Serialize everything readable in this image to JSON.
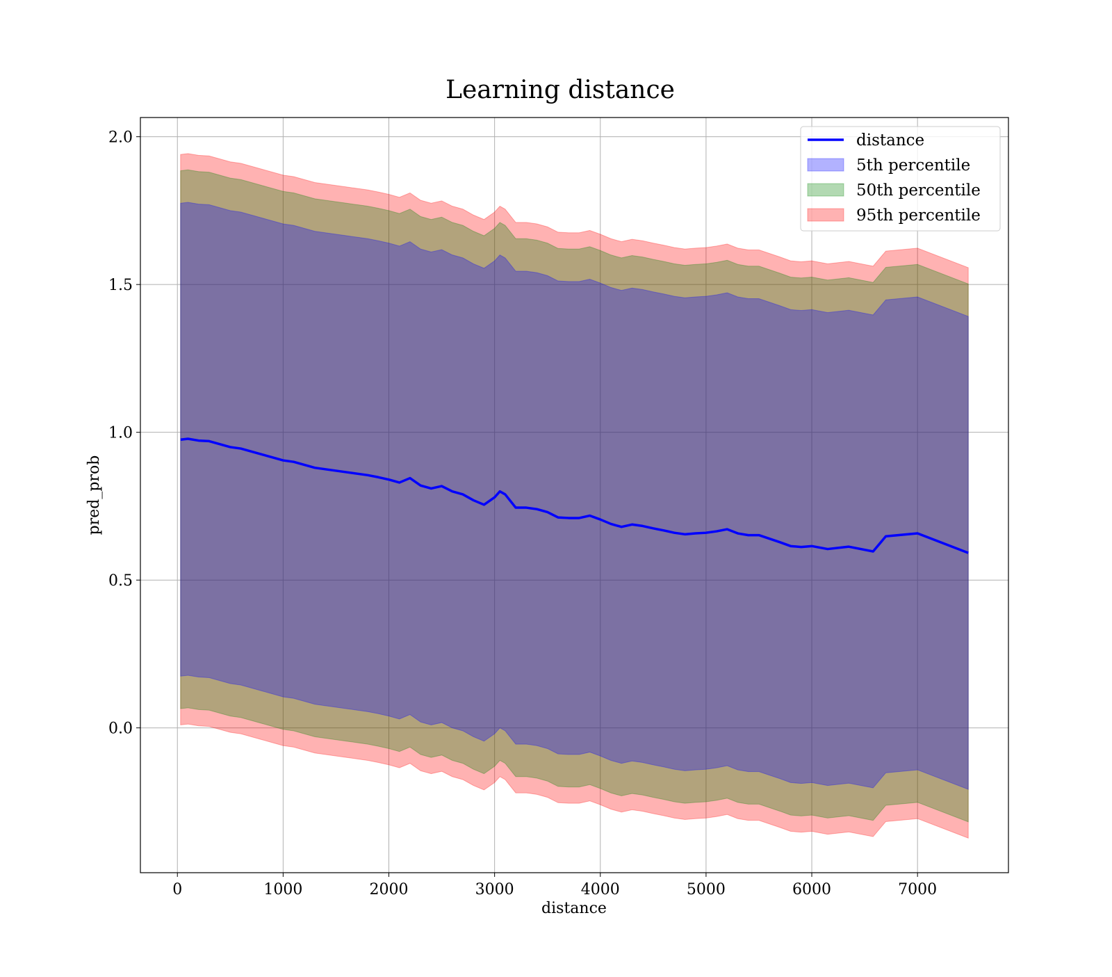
{
  "chart_data": {
    "type": "area",
    "title": "Learning distance",
    "xlabel": "distance",
    "ylabel": "pred_prob",
    "xlim": [
      -350,
      7860
    ],
    "ylim": [
      -0.49,
      2.065
    ],
    "xticks": [
      0,
      1000,
      2000,
      3000,
      4000,
      5000,
      6000,
      7000
    ],
    "xtick_labels": [
      "0",
      "1000",
      "2000",
      "3000",
      "4000",
      "5000",
      "6000",
      "7000"
    ],
    "yticks": [
      0.0,
      0.5,
      1.0,
      1.5,
      2.0
    ],
    "ytick_labels": [
      "0.0",
      "0.5",
      "1.0",
      "1.5",
      "2.0"
    ],
    "grid": true,
    "legend_position": "top-right",
    "x": [
      30,
      100,
      200,
      300,
      400,
      500,
      600,
      700,
      800,
      900,
      1000,
      1100,
      1200,
      1300,
      1400,
      1500,
      1600,
      1700,
      1800,
      1900,
      2000,
      2100,
      2200,
      2300,
      2400,
      2500,
      2600,
      2700,
      2800,
      2900,
      3000,
      3050,
      3100,
      3200,
      3300,
      3400,
      3500,
      3600,
      3700,
      3800,
      3900,
      4000,
      4100,
      4200,
      4300,
      4400,
      4500,
      4600,
      4700,
      4800,
      4900,
      5000,
      5100,
      5200,
      5300,
      5400,
      5500,
      5600,
      5700,
      5800,
      5900,
      6000,
      6150,
      6350,
      6580,
      6700,
      7000,
      7480
    ],
    "line": {
      "name": "distance",
      "color": "#0000ff",
      "values": [
        0.975,
        0.978,
        0.972,
        0.97,
        0.96,
        0.95,
        0.945,
        0.935,
        0.925,
        0.915,
        0.905,
        0.9,
        0.89,
        0.88,
        0.875,
        0.87,
        0.865,
        0.86,
        0.855,
        0.848,
        0.84,
        0.83,
        0.845,
        0.82,
        0.81,
        0.818,
        0.8,
        0.79,
        0.77,
        0.755,
        0.78,
        0.8,
        0.79,
        0.745,
        0.745,
        0.74,
        0.73,
        0.712,
        0.71,
        0.71,
        0.718,
        0.705,
        0.69,
        0.68,
        0.688,
        0.683,
        0.675,
        0.668,
        0.66,
        0.655,
        0.658,
        0.66,
        0.665,
        0.672,
        0.658,
        0.652,
        0.652,
        0.64,
        0.628,
        0.615,
        0.612,
        0.615,
        0.605,
        0.613,
        0.597,
        0.648,
        0.658,
        0.592
      ]
    },
    "bands": [
      {
        "name": "5th percentile",
        "color": "#0000ff",
        "opacity": 0.3,
        "half_width": 0.8
      },
      {
        "name": "50th percentile",
        "color": "#008000",
        "opacity": 0.3,
        "half_width": 0.91
      },
      {
        "name": "95th percentile",
        "color": "#ff0000",
        "opacity": 0.3,
        "half_width": 0.965
      }
    ]
  }
}
